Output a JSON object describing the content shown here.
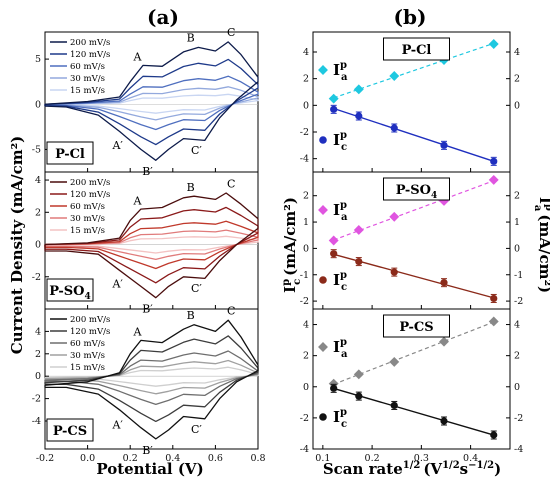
{
  "figure": {
    "label_a": "(a)",
    "label_b": "(b)",
    "left_ylabel": "Current Density (mA/cm²)",
    "left_xlabel": "Potential (V)",
    "right_xlabel": "Scan rate",
    "right_xlabel_sup": "1/2",
    "right_xlabel_units": "(V",
    "right_xlabel_units_sup": "1/2",
    "right_xlabel_units_mid": "s",
    "right_xlabel_units_sup2": "−1/2",
    "right_xlabel_units_end": ")",
    "right_ylabel_c": "I",
    "right_ylabel_c_sup": "p",
    "right_ylabel_c_sub": "c",
    "right_ylabel_c_units": "(mA/cm²)",
    "right_ylabel_a": "I",
    "right_ylabel_a_sup": "p",
    "right_ylabel_a_sub": "a",
    "right_ylabel_a_units": "(mA/cm²)",
    "legend_ia": "I",
    "legend_ia_sup": "p",
    "legend_ia_sub": "a",
    "legend_ic": "I",
    "legend_ic_sup": "p",
    "legend_ic_sub": "c",
    "peak_A": "A",
    "peak_B": "B",
    "peak_C": "C",
    "peak_Ap": "A′",
    "peak_Bp": "B′",
    "peak_Cp": "C′"
  },
  "chart_data": [
    {
      "type": "line",
      "panel": "a-top",
      "label": "P-Cl",
      "xlim": [
        -0.2,
        0.8
      ],
      "ylim": [
        -7.5,
        8
      ],
      "yticks": [
        -5,
        0,
        5
      ],
      "xticks": [
        -0.2,
        0.0,
        0.2,
        0.4,
        0.6,
        0.8
      ],
      "legend": [
        "200 mV/s",
        "120 mV/s",
        "60 mV/s",
        "30 mV/s",
        "15 mV/s"
      ],
      "colors": [
        "#0d1b4a",
        "#1e3a8a",
        "#4f6fbf",
        "#93a9dd",
        "#c9d6f2"
      ],
      "scales": [
        1.0,
        0.72,
        0.45,
        0.28,
        0.16
      ],
      "anodic": {
        "base": [
          [
            -0.2,
            0.0
          ],
          [
            0.0,
            0.3
          ],
          [
            0.15,
            0.8
          ],
          [
            0.2,
            2.5
          ],
          [
            0.26,
            4.3
          ],
          [
            0.35,
            4.2
          ],
          [
            0.45,
            5.8
          ],
          [
            0.52,
            6.3
          ],
          [
            0.6,
            5.9
          ],
          [
            0.66,
            6.9
          ],
          [
            0.72,
            5.5
          ],
          [
            0.8,
            3.0
          ]
        ]
      },
      "cathodic": {
        "base": [
          [
            0.8,
            2.5
          ],
          [
            0.7,
            0.5
          ],
          [
            0.62,
            -1.5
          ],
          [
            0.55,
            -4.0
          ],
          [
            0.45,
            -3.8
          ],
          [
            0.38,
            -5.0
          ],
          [
            0.32,
            -6.2
          ],
          [
            0.25,
            -5.0
          ],
          [
            0.15,
            -3.0
          ],
          [
            0.05,
            -1.2
          ],
          [
            -0.1,
            -0.3
          ],
          [
            -0.2,
            -0.2
          ]
        ]
      }
    },
    {
      "type": "line",
      "panel": "a-mid",
      "label": "P-SO",
      "label_sub": "4",
      "xlim": [
        -0.2,
        0.8
      ],
      "ylim": [
        -4,
        4.5
      ],
      "yticks": [
        -2,
        0,
        2,
        4
      ],
      "xticks": [
        -0.2,
        0.0,
        0.2,
        0.4,
        0.6,
        0.8
      ],
      "legend": [
        "200 mV/s",
        "120 mV/s",
        "60 mV/s",
        "30 mV/s",
        "15 mV/s"
      ],
      "colors": [
        "#4a0d0d",
        "#8b1a1a",
        "#c0392b",
        "#e07b7b",
        "#f3c3c3"
      ],
      "scales": [
        1.0,
        0.72,
        0.45,
        0.28,
        0.16
      ],
      "anodic": {
        "base": [
          [
            -0.2,
            0.0
          ],
          [
            0.0,
            0.1
          ],
          [
            0.15,
            0.4
          ],
          [
            0.2,
            1.5
          ],
          [
            0.25,
            2.2
          ],
          [
            0.35,
            2.3
          ],
          [
            0.45,
            2.9
          ],
          [
            0.5,
            3.0
          ],
          [
            0.6,
            2.8
          ],
          [
            0.65,
            3.2
          ],
          [
            0.72,
            2.5
          ],
          [
            0.8,
            1.6
          ]
        ]
      },
      "cathodic": {
        "base": [
          [
            0.8,
            1.0
          ],
          [
            0.7,
            0.0
          ],
          [
            0.62,
            -1.0
          ],
          [
            0.55,
            -2.1
          ],
          [
            0.45,
            -2.0
          ],
          [
            0.38,
            -2.6
          ],
          [
            0.32,
            -3.3
          ],
          [
            0.25,
            -2.6
          ],
          [
            0.15,
            -1.6
          ],
          [
            0.05,
            -0.6
          ],
          [
            -0.1,
            -0.4
          ],
          [
            -0.2,
            -0.4
          ]
        ]
      }
    },
    {
      "type": "line",
      "panel": "a-bot",
      "label": "P-CS",
      "xlim": [
        -0.2,
        0.8
      ],
      "ylim": [
        -6.5,
        6
      ],
      "yticks": [
        -4,
        -2,
        0,
        2,
        4
      ],
      "xticks": [
        -0.2,
        0.0,
        0.2,
        0.4,
        0.6,
        0.8
      ],
      "legend": [
        "200 mV/s",
        "120 mV/s",
        "60 mV/s",
        "30 mV/s",
        "15 mV/s"
      ],
      "colors": [
        "#111111",
        "#3d3d3d",
        "#6e6e6e",
        "#a0a0a0",
        "#cfcfcf"
      ],
      "scales": [
        1.0,
        0.72,
        0.45,
        0.28,
        0.16
      ],
      "anodic": {
        "base": [
          [
            -0.2,
            -0.8
          ],
          [
            0.0,
            -0.5
          ],
          [
            0.15,
            0.3
          ],
          [
            0.2,
            2.0
          ],
          [
            0.25,
            3.2
          ],
          [
            0.35,
            3.0
          ],
          [
            0.45,
            4.2
          ],
          [
            0.5,
            4.6
          ],
          [
            0.6,
            4.0
          ],
          [
            0.66,
            5.0
          ],
          [
            0.72,
            3.5
          ],
          [
            0.8,
            1.0
          ]
        ]
      },
      "cathodic": {
        "base": [
          [
            0.8,
            0.5
          ],
          [
            0.7,
            -0.5
          ],
          [
            0.62,
            -2.0
          ],
          [
            0.55,
            -3.8
          ],
          [
            0.45,
            -3.6
          ],
          [
            0.38,
            -4.8
          ],
          [
            0.32,
            -5.6
          ],
          [
            0.25,
            -4.6
          ],
          [
            0.15,
            -3.0
          ],
          [
            0.05,
            -1.6
          ],
          [
            -0.1,
            -1.0
          ],
          [
            -0.2,
            -1.0
          ]
        ]
      }
    },
    {
      "type": "scatter",
      "panel": "b-top",
      "label": "P-Cl",
      "x": [
        0.122,
        0.173,
        0.245,
        0.346,
        0.447
      ],
      "anodic": {
        "name": "Ia",
        "values": [
          0.5,
          1.2,
          2.2,
          3.4,
          4.6
        ],
        "color": "#1ec8e0",
        "ylim": [
          -5,
          5.5
        ],
        "yticks": [
          0,
          2,
          4
        ]
      },
      "cathodic": {
        "name": "Ic",
        "values": [
          -0.3,
          -0.8,
          -1.7,
          -3.0,
          -4.2
        ],
        "color": "#1f2fbf",
        "ylim": [
          -5,
          5.5
        ],
        "yticks": [
          -4,
          -2,
          0,
          2,
          4
        ]
      },
      "xlim": [
        0.08,
        0.48
      ],
      "xticks": [
        0.1,
        0.2,
        0.3,
        0.4
      ]
    },
    {
      "type": "scatter",
      "panel": "b-mid",
      "label": "P-SO",
      "label_sub": "4",
      "x": [
        0.122,
        0.173,
        0.245,
        0.346,
        0.447
      ],
      "anodic": {
        "name": "Ia",
        "values": [
          0.3,
          0.7,
          1.2,
          1.8,
          2.6
        ],
        "color": "#e055e0",
        "ylim": [
          -2.3,
          2.9
        ],
        "yticks": [
          -2,
          -1,
          0,
          1,
          2
        ]
      },
      "cathodic": {
        "name": "Ic",
        "values": [
          -0.2,
          -0.5,
          -0.9,
          -1.3,
          -1.9
        ],
        "color": "#8b2a1a",
        "ylim": [
          -2.3,
          2.9
        ],
        "yticks": [
          -2,
          -1,
          0,
          1,
          2
        ]
      },
      "xlim": [
        0.08,
        0.48
      ],
      "xticks": [
        0.1,
        0.2,
        0.3,
        0.4
      ]
    },
    {
      "type": "scatter",
      "panel": "b-bot",
      "label": "P-CS",
      "x": [
        0.122,
        0.173,
        0.245,
        0.346,
        0.447
      ],
      "anodic": {
        "name": "Ia",
        "values": [
          0.2,
          0.8,
          1.6,
          2.9,
          4.2
        ],
        "color": "#888888",
        "ylim": [
          -4,
          5
        ],
        "yticks": [
          -4,
          -2,
          0,
          2,
          4
        ]
      },
      "cathodic": {
        "name": "Ic",
        "values": [
          -0.1,
          -0.6,
          -1.2,
          -2.2,
          -3.1
        ],
        "color": "#111111",
        "ylim": [
          -4,
          5
        ],
        "yticks": [
          -4,
          -2,
          0,
          2,
          4
        ]
      },
      "xlim": [
        0.08,
        0.48
      ],
      "xticks": [
        0.1,
        0.2,
        0.3,
        0.4
      ]
    }
  ]
}
